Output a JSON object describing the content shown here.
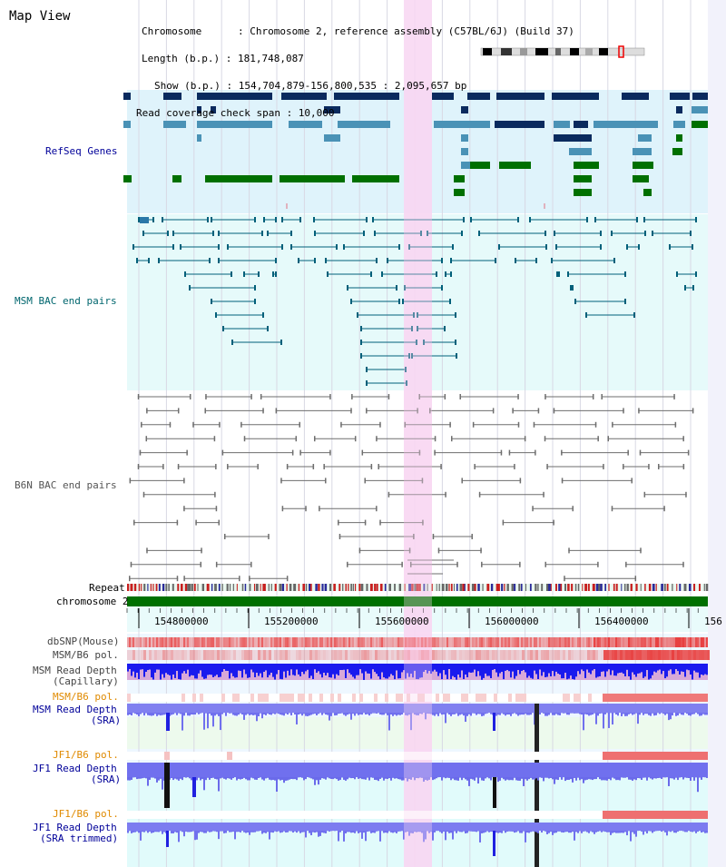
{
  "header": {
    "title": "Map View",
    "chromosome_line": "Chromosome      : Chromosome 2, reference assembly (C57BL/6J) (Build 37)",
    "length_line": "Length (b.p.) : 181,748,087",
    "show_line": "Show (b.p.) : 154,704,879-156,800,535 : 2,095,657 bp",
    "coverage_line": "Read coverage check span : 10,000"
  },
  "tracks": {
    "refseq": "RefSeq Genes",
    "msm_bac": "MSM BAC end pairs",
    "b6n_bac": "B6N BAC end pairs",
    "repeat": "Repeat",
    "chromosome": "chromosome 2",
    "dbsnp": "dbSNP(Mouse)",
    "msm_b6_pol_1": "MSM/B6 pol.",
    "msm_read_depth_cap_1": "MSM Read Depth",
    "msm_read_depth_cap_2": "(Capillary)",
    "msm_b6_pol_2": "MSM/B6 pol.",
    "msm_read_depth_sra_1": "MSM Read Depth",
    "msm_read_depth_sra_2": "(SRA)",
    "jf1_b6_pol_1": "JF1/B6 pol.",
    "jf1_read_depth_sra_1": "JF1 Read Depth",
    "jf1_read_depth_sra_2": "(SRA)",
    "jf1_b6_pol_2": "JF1/B6 pol.",
    "jf1_read_depth_trim_1": "JF1 Read Depth",
    "jf1_read_depth_trim_2": "(SRA trimmed)"
  },
  "ruler": {
    "ticks": [
      "154800000",
      "155200000",
      "155600000",
      "156000000",
      "156400000",
      "156"
    ]
  },
  "colors": {
    "refseq_bg": "#dff3fb",
    "msm_bac_bg": "#e6fafa",
    "highlight": "#f8d6f2",
    "chrom_bar": "#007000",
    "label_blue": "#000099",
    "label_teal": "#00666e",
    "label_orange": "#e08a00",
    "depth_blue": "#0000dd",
    "pol_red": "#e84040"
  }
}
